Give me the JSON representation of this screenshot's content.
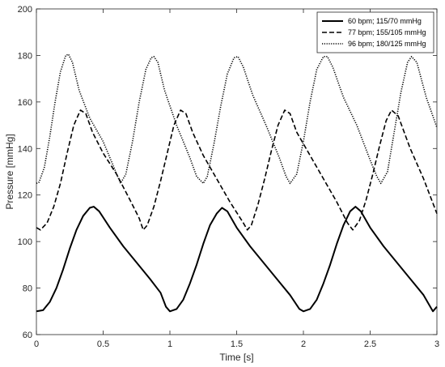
{
  "chart_data": {
    "type": "line",
    "title": "",
    "xlabel": "Time [s]",
    "ylabel": "Pressure [mmHg]",
    "xlim": [
      0,
      3
    ],
    "ylim": [
      60,
      200
    ],
    "x_ticks": [
      0,
      0.5,
      1,
      1.5,
      2,
      2.5,
      3
    ],
    "x_tick_labels": [
      "0",
      "0.5",
      "1",
      "1.5",
      "2",
      "2.5",
      "3"
    ],
    "y_ticks": [
      60,
      80,
      100,
      120,
      140,
      160,
      180,
      200
    ],
    "y_tick_labels": [
      "60",
      "80",
      "100",
      "120",
      "140",
      "160",
      "180",
      "200"
    ],
    "grid": false,
    "legend_position": "top-right",
    "series": [
      {
        "name": "60 bpm; 115/70 mmHg",
        "style": "solid",
        "color": "#000000",
        "x": [
          0,
          0.05,
          0.1,
          0.15,
          0.2,
          0.25,
          0.3,
          0.35,
          0.4,
          0.43,
          0.47,
          0.55,
          0.65,
          0.75,
          0.85,
          0.93,
          0.97,
          1.0,
          1.05,
          1.1,
          1.15,
          1.2,
          1.25,
          1.3,
          1.35,
          1.39,
          1.43,
          1.5,
          1.6,
          1.7,
          1.8,
          1.9,
          1.97,
          2.0,
          2.05,
          2.1,
          2.15,
          2.2,
          2.25,
          2.3,
          2.35,
          2.39,
          2.43,
          2.5,
          2.6,
          2.7,
          2.8,
          2.9,
          2.97,
          3.0
        ],
        "y": [
          70,
          70.5,
          74,
          80,
          88,
          97,
          105,
          111,
          114.5,
          115,
          113,
          106,
          98,
          91,
          84,
          78,
          72,
          70,
          71,
          75,
          82,
          90,
          99,
          107,
          112,
          114.5,
          113,
          106,
          98,
          91,
          84,
          77,
          71,
          70,
          71,
          75,
          82,
          90,
          99,
          107,
          113,
          115,
          113,
          106,
          98,
          91,
          84,
          77,
          70,
          72
        ]
      },
      {
        "name": "77 bpm; 155/105 mmHg",
        "style": "dashed",
        "color": "#000000",
        "x": [
          0,
          0.03,
          0.08,
          0.13,
          0.18,
          0.23,
          0.28,
          0.33,
          0.37,
          0.42,
          0.5,
          0.6,
          0.7,
          0.77,
          0.8,
          0.83,
          0.88,
          0.93,
          0.98,
          1.03,
          1.08,
          1.12,
          1.17,
          1.25,
          1.35,
          1.45,
          1.55,
          1.58,
          1.61,
          1.66,
          1.71,
          1.76,
          1.81,
          1.86,
          1.9,
          1.95,
          2.05,
          2.15,
          2.25,
          2.33,
          2.37,
          2.42,
          2.47,
          2.52,
          2.57,
          2.62,
          2.66,
          2.71,
          2.8,
          2.9,
          3.0
        ],
        "y": [
          106,
          105,
          108,
          115,
          125,
          138,
          150,
          156.5,
          155,
          147,
          138,
          129,
          118,
          110,
          105,
          107,
          115,
          126,
          138,
          150,
          156.5,
          155,
          147,
          137,
          127,
          117,
          108,
          105,
          107,
          116,
          127,
          139,
          150,
          156.5,
          155,
          147,
          137,
          127,
          117,
          108,
          105,
          109,
          118,
          129,
          141,
          152,
          156.5,
          154,
          140,
          127,
          112
        ]
      },
      {
        "name": "96 bpm; 180/125 mmHg",
        "style": "dotted",
        "color": "#000000",
        "x": [
          0,
          0.02,
          0.06,
          0.1,
          0.14,
          0.18,
          0.22,
          0.24,
          0.27,
          0.32,
          0.4,
          0.5,
          0.58,
          0.63,
          0.67,
          0.72,
          0.77,
          0.82,
          0.86,
          0.88,
          0.91,
          0.96,
          1.05,
          1.15,
          1.2,
          1.25,
          1.28,
          1.33,
          1.38,
          1.43,
          1.48,
          1.51,
          1.55,
          1.62,
          1.72,
          1.82,
          1.87,
          1.9,
          1.95,
          2.0,
          2.05,
          2.1,
          2.15,
          2.18,
          2.22,
          2.3,
          2.4,
          2.5,
          2.55,
          2.58,
          2.63,
          2.68,
          2.73,
          2.78,
          2.81,
          2.85,
          2.92,
          3.0
        ],
        "y": [
          125,
          125.5,
          132,
          145,
          160,
          173,
          180,
          180.5,
          177,
          165,
          153,
          143,
          132,
          125,
          129,
          143,
          160,
          174,
          179,
          179.5,
          177,
          165,
          150,
          136,
          128,
          125,
          128,
          142,
          158,
          172,
          179,
          179.5,
          175,
          163,
          150,
          136,
          128,
          125,
          129,
          143,
          160,
          174,
          179.5,
          179.5,
          175,
          162,
          150,
          135,
          128,
          125,
          130,
          147,
          164,
          177,
          179.5,
          177,
          162,
          149
        ]
      }
    ]
  }
}
